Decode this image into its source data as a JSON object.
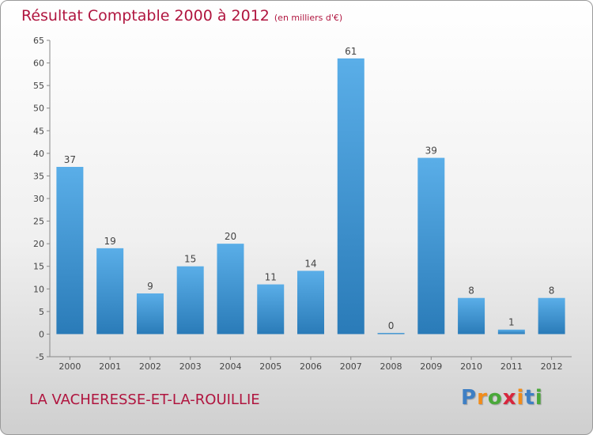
{
  "title": "Résultat Comptable 2000 à 2012",
  "subtitle": "(en milliers d'€)",
  "commune": "LA VACHERESSE-ET-LA-ROUILLIE",
  "logo": {
    "letters": [
      "P",
      "r",
      "o",
      "x",
      "i",
      "t",
      "i"
    ],
    "colors": [
      "#3e7fc4",
      "#f28c1a",
      "#4aa83a",
      "#d7263d",
      "#f28c1a",
      "#3e7fc4",
      "#4aa83a"
    ]
  },
  "colors": {
    "bar_light": "#5aaee8",
    "bar_dark": "#2a7bb8",
    "title": "#b0153f"
  },
  "chart_data": {
    "type": "bar",
    "title": "Résultat Comptable 2000 à 2012",
    "subtitle": "(en milliers d'€)",
    "categories": [
      "2000",
      "2001",
      "2002",
      "2003",
      "2004",
      "2005",
      "2006",
      "2007",
      "2008",
      "2009",
      "2010",
      "2011",
      "2012"
    ],
    "values": [
      37,
      19,
      9,
      15,
      20,
      11,
      14,
      61,
      0,
      39,
      8,
      1,
      8
    ],
    "ylim": [
      -5,
      65
    ],
    "yticks": [
      -5,
      0,
      5,
      10,
      15,
      20,
      25,
      30,
      35,
      40,
      45,
      50,
      55,
      60,
      65
    ],
    "grid": false,
    "data_labels": true
  }
}
